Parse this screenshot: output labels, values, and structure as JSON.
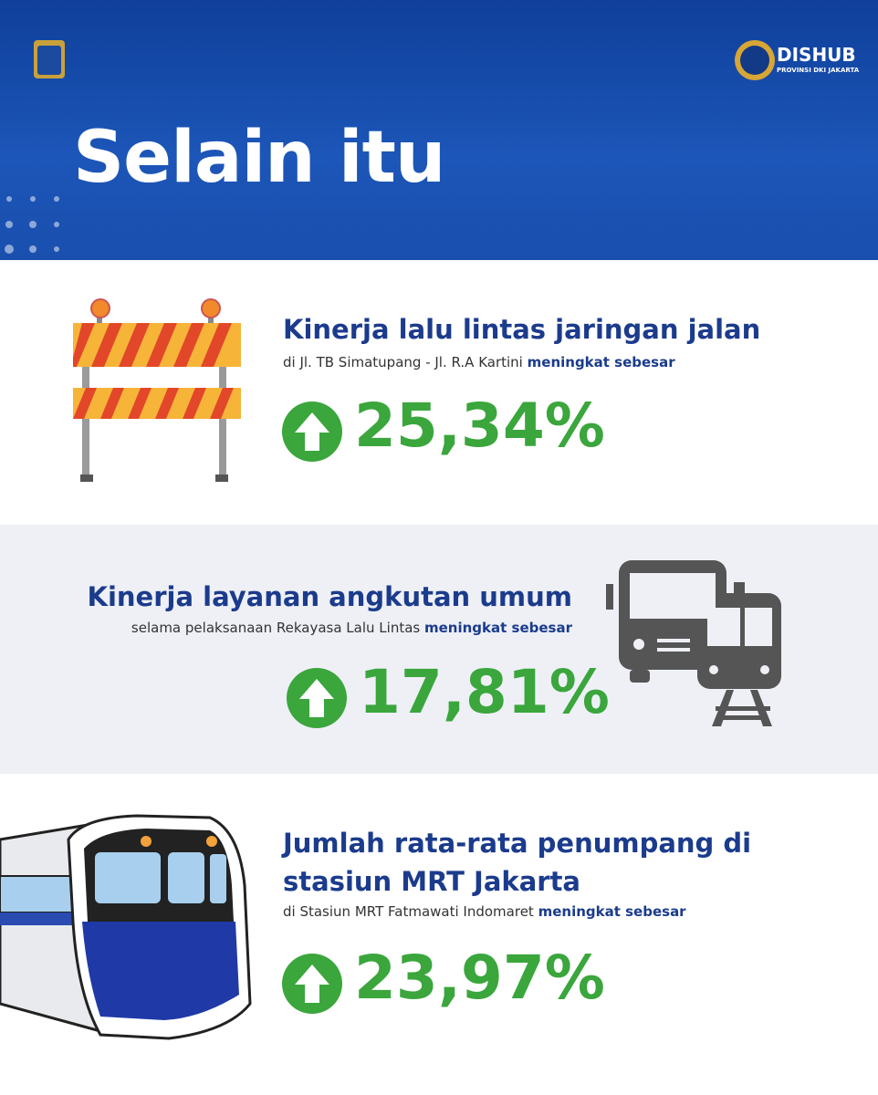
{
  "header": {
    "title": "Selain itu",
    "logo_text": "DISHUB",
    "logo_subtext": "PROVINSI DKI JAKARTA"
  },
  "items": [
    {
      "title_lines": [
        "Kinerja lalu lintas jaringan jalan"
      ],
      "subtitle": "di Jl. TB Simatupang - Jl. R.A Kartini",
      "subtitle_bold": "meningkat sebesar",
      "value": "25,34%"
    },
    {
      "title_lines": [
        "Kinerja layanan angkutan umum"
      ],
      "subtitle": "selama pelaksanaan Rekayasa Lalu Lintas",
      "subtitle_bold": "meningkat sebesar",
      "value": "17,81%"
    },
    {
      "title_lines": [
        "Jumlah rata-rata penumpang di",
        "stasiun MRT Jakarta"
      ],
      "subtitle": "di Stasiun MRT Fatmawati Indomaret",
      "subtitle_bold": "meningkat sebesar",
      "value": "23,97%"
    }
  ]
}
